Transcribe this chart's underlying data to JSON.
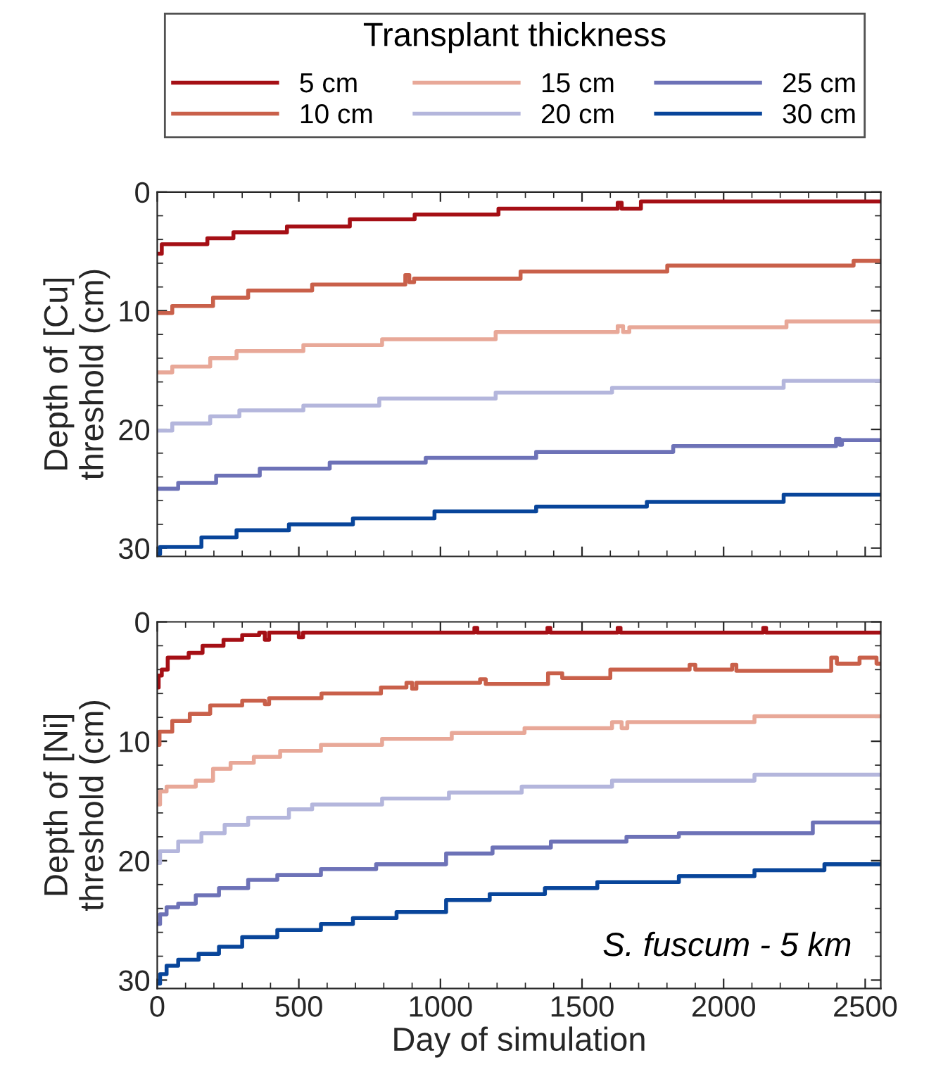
{
  "chart_data": [
    {
      "type": "step",
      "ylabel": "Depth of [Cu]\nthreshold (cm)",
      "legend_title": "Transplant thickness",
      "legend": "top",
      "tick_labels": "y",
      "line_style": "solid",
      "grid": false,
      "xlim": [
        0,
        2555
      ],
      "ylim": [
        30.7,
        0
      ],
      "xticks": [
        0,
        {
          "value": 100,
          "label": null
        },
        {
          "value": 200,
          "label": null
        },
        {
          "value": 300,
          "label": null
        },
        {
          "value": 400,
          "label": null
        },
        500,
        {
          "value": 600,
          "label": null
        },
        {
          "value": 700,
          "label": null
        },
        {
          "value": 800,
          "label": null
        },
        {
          "value": 900,
          "label": null
        },
        1000,
        {
          "value": 1100,
          "label": null
        },
        {
          "value": 1200,
          "label": null
        },
        {
          "value": 1300,
          "label": null
        },
        {
          "value": 1400,
          "label": null
        },
        1500,
        {
          "value": 1600,
          "label": null
        },
        {
          "value": 1700,
          "label": null
        },
        {
          "value": 1800,
          "label": null
        },
        {
          "value": 1900,
          "label": null
        },
        2000,
        {
          "value": 2100,
          "label": null
        },
        {
          "value": 2200,
          "label": null
        },
        {
          "value": 2300,
          "label": null
        },
        {
          "value": 2400,
          "label": null
        },
        2500
      ],
      "yticks": [
        0,
        {
          "value": 2,
          "label": null
        },
        {
          "value": 4,
          "label": null
        },
        {
          "value": 6,
          "label": null
        },
        {
          "value": 8,
          "label": null
        },
        10,
        {
          "value": 12,
          "label": null
        },
        {
          "value": 14,
          "label": null
        },
        {
          "value": 16,
          "label": null
        },
        {
          "value": 18,
          "label": null
        },
        20,
        {
          "value": 22,
          "label": null
        },
        {
          "value": 24,
          "label": null
        },
        {
          "value": 26,
          "label": null
        },
        {
          "value": 28,
          "label": null
        },
        30
      ],
      "series": [
        {
          "name": "5 cm",
          "color": "#a50f15",
          "x": [
            0,
            16,
            177,
            269,
            458,
            680,
            909,
            1205,
            1626,
            1640,
            1708,
            2555
          ],
          "values": [
            5.2,
            4.4,
            3.9,
            3.4,
            2.9,
            2.3,
            1.9,
            1.4,
            0.9,
            1.4,
            0.8,
            0.8
          ]
        },
        {
          "name": "10 cm",
          "color": "#c9604a",
          "x": [
            0,
            53,
            197,
            321,
            547,
            876,
            890,
            907,
            1283,
            1801,
            2459,
            2555
          ],
          "values": [
            10.2,
            9.6,
            8.9,
            8.3,
            7.8,
            7.0,
            7.6,
            7.3,
            6.7,
            6.2,
            5.8,
            5.8
          ]
        },
        {
          "name": "15 cm",
          "color": "#e8a898",
          "x": [
            0,
            53,
            187,
            280,
            516,
            794,
            1195,
            1626,
            1645,
            1667,
            2222,
            2555
          ],
          "values": [
            15.2,
            14.7,
            14.0,
            13.4,
            12.9,
            12.4,
            11.8,
            11.3,
            11.8,
            11.4,
            10.9,
            10.9
          ]
        },
        {
          "name": "20 cm",
          "color": "#b4b6dc",
          "x": [
            0,
            53,
            187,
            290,
            516,
            784,
            1195,
            1606,
            2212,
            2555
          ],
          "values": [
            20.1,
            19.5,
            18.9,
            18.4,
            18.0,
            17.4,
            16.9,
            16.5,
            15.9,
            15.9
          ]
        },
        {
          "name": "25 cm",
          "color": "#6d72b7",
          "x": [
            0,
            74,
            208,
            362,
            609,
            948,
            1338,
            1822,
            2397,
            2410,
            2418,
            2555
          ],
          "values": [
            25.0,
            24.5,
            23.9,
            23.3,
            22.8,
            22.4,
            21.9,
            21.4,
            20.8,
            21.3,
            20.9,
            20.9
          ]
        },
        {
          "name": "30 cm",
          "color": "#08459a",
          "x": [
            0,
            10,
            156,
            280,
            465,
            691,
            979,
            1338,
            1729,
            2212,
            2555
          ],
          "values": [
            30.5,
            29.9,
            29.1,
            28.5,
            28.0,
            27.5,
            26.9,
            26.5,
            26.1,
            25.5,
            25.5
          ]
        }
      ]
    },
    {
      "type": "step",
      "ylabel": "Depth of [Ni]\nthreshold (cm)",
      "xlabel": "Day of simulation",
      "annotations": [
        "S. fuscum - 5 km"
      ],
      "line_style": "solid",
      "grid": false,
      "xlim": [
        0,
        2555
      ],
      "ylim": [
        30.7,
        0
      ],
      "xticks": [
        0,
        {
          "value": 100,
          "label": null
        },
        {
          "value": 200,
          "label": null
        },
        {
          "value": 300,
          "label": null
        },
        {
          "value": 400,
          "label": null
        },
        500,
        {
          "value": 600,
          "label": null
        },
        {
          "value": 700,
          "label": null
        },
        {
          "value": 800,
          "label": null
        },
        {
          "value": 900,
          "label": null
        },
        1000,
        {
          "value": 1100,
          "label": null
        },
        {
          "value": 1200,
          "label": null
        },
        {
          "value": 1300,
          "label": null
        },
        {
          "value": 1400,
          "label": null
        },
        1500,
        {
          "value": 1600,
          "label": null
        },
        {
          "value": 1700,
          "label": null
        },
        {
          "value": 1800,
          "label": null
        },
        {
          "value": 1900,
          "label": null
        },
        2000,
        {
          "value": 2100,
          "label": null
        },
        {
          "value": 2200,
          "label": null
        },
        {
          "value": 2300,
          "label": null
        },
        {
          "value": 2400,
          "label": null
        },
        2500
      ],
      "yticks": [
        0,
        {
          "value": 2,
          "label": null
        },
        {
          "value": 4,
          "label": null
        },
        {
          "value": 6,
          "label": null
        },
        {
          "value": 8,
          "label": null
        },
        10,
        {
          "value": 12,
          "label": null
        },
        {
          "value": 14,
          "label": null
        },
        {
          "value": 16,
          "label": null
        },
        {
          "value": 18,
          "label": null
        },
        20,
        {
          "value": 22,
          "label": null
        },
        {
          "value": 24,
          "label": null
        },
        {
          "value": 26,
          "label": null
        },
        {
          "value": 28,
          "label": null
        },
        30
      ],
      "series": [
        {
          "color": "#a50f15",
          "x": [
            0,
            5,
            16,
            37,
            111,
            160,
            234,
            300,
            360,
            380,
            395,
            500,
            515,
            1120,
            1130,
            1378,
            1388,
            1626,
            1636,
            2140,
            2150,
            2555
          ],
          "values": [
            5.5,
            4.5,
            4.0,
            3.0,
            2.6,
            2.0,
            1.5,
            1.1,
            0.9,
            1.5,
            0.9,
            1.3,
            0.9,
            0.5,
            0.9,
            0.5,
            0.9,
            0.5,
            0.9,
            0.5,
            0.9,
            0.9
          ]
        },
        {
          "color": "#c9604a",
          "x": [
            0,
            8,
            53,
            115,
            187,
            300,
            380,
            395,
            580,
            790,
            880,
            900,
            915,
            1140,
            1160,
            1380,
            1430,
            1600,
            1880,
            1900,
            2030,
            2045,
            2380,
            2400,
            2480,
            2540,
            2555
          ],
          "values": [
            10.3,
            9.2,
            8.3,
            7.7,
            7.0,
            6.6,
            6.9,
            6.4,
            6.0,
            5.5,
            5.1,
            5.6,
            5.1,
            4.8,
            5.2,
            4.3,
            4.7,
            4.0,
            3.6,
            4.0,
            3.6,
            4.1,
            3.0,
            3.5,
            3.0,
            3.5,
            3.5
          ]
        },
        {
          "color": "#e8a898",
          "x": [
            0,
            10,
            33,
            136,
            197,
            259,
            341,
            434,
            578,
            794,
            1040,
            1297,
            1606,
            1640,
            1660,
            2109,
            2555
          ],
          "values": [
            15.3,
            14.2,
            13.8,
            13.3,
            12.3,
            11.8,
            11.3,
            10.8,
            10.3,
            9.8,
            9.3,
            8.9,
            8.4,
            8.9,
            8.4,
            7.9,
            7.9
          ]
        },
        {
          "color": "#b4b6dc",
          "x": [
            0,
            10,
            74,
            156,
            238,
            321,
            465,
            547,
            794,
            1030,
            1287,
            1606,
            2109,
            2555
          ],
          "values": [
            20.2,
            19.2,
            18.4,
            17.7,
            17.0,
            16.4,
            15.7,
            15.3,
            14.8,
            14.3,
            13.8,
            13.3,
            12.8,
            12.8
          ]
        },
        {
          "color": "#6d72b7",
          "x": [
            0,
            10,
            33,
            74,
            136,
            218,
            321,
            424,
            578,
            773,
            1020,
            1184,
            1390,
            1657,
            1842,
            2315,
            2555
          ],
          "values": [
            25.3,
            24.5,
            23.9,
            23.6,
            22.9,
            22.3,
            21.6,
            21.2,
            20.7,
            20.3,
            19.4,
            18.9,
            18.4,
            18.0,
            17.7,
            16.8,
            16.8
          ]
        },
        {
          "color": "#08459a",
          "x": [
            0,
            10,
            33,
            74,
            146,
            218,
            300,
            424,
            578,
            691,
            845,
            1020,
            1174,
            1369,
            1554,
            1842,
            2109,
            2356,
            2555
          ],
          "values": [
            30.3,
            29.5,
            28.8,
            28.3,
            27.8,
            27.2,
            26.4,
            25.8,
            25.3,
            24.8,
            24.3,
            23.3,
            22.8,
            22.3,
            21.8,
            21.3,
            20.8,
            20.3,
            20.3
          ]
        }
      ]
    }
  ]
}
